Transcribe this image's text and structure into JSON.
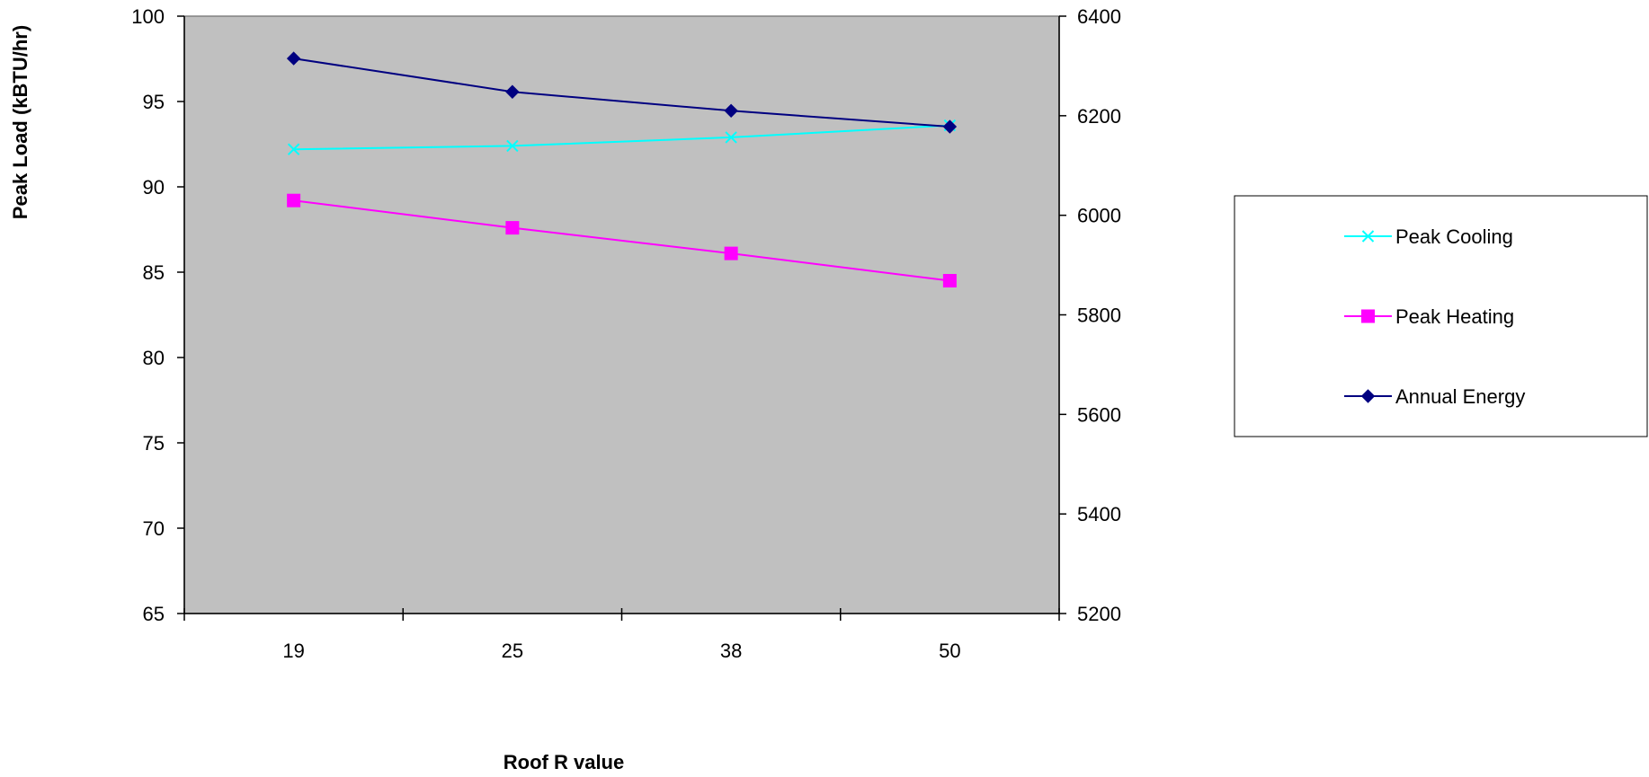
{
  "chart_data": {
    "type": "line",
    "title": "",
    "categories": [
      "19",
      "25",
      "38",
      "50"
    ],
    "xlabel": "Roof R value",
    "ylabel": "Peak Load (kBTU/hr)",
    "y2label": "",
    "ylim": [
      65,
      100
    ],
    "y_ticks": [
      65,
      70,
      75,
      80,
      85,
      90,
      95,
      100
    ],
    "y2lim": [
      5200,
      6400
    ],
    "y2_ticks": [
      5200,
      5400,
      5600,
      5800,
      6000,
      6200,
      6400
    ],
    "grid": false,
    "plot_background": "#C0C0C0",
    "legend_position": "right",
    "series": [
      {
        "name": "Peak Cooling",
        "axis": "left",
        "color": "#00FFFF",
        "marker": "x",
        "values": [
          92.2,
          92.4,
          92.9,
          93.6
        ]
      },
      {
        "name": "Peak Heating",
        "axis": "left",
        "color": "#FF00FF",
        "marker": "square",
        "values": [
          89.2,
          87.6,
          86.1,
          84.5
        ]
      },
      {
        "name": "Annual Energy",
        "axis": "right",
        "color": "#000080",
        "marker": "diamond",
        "values": [
          6315,
          6248,
          6210,
          6178
        ]
      }
    ]
  }
}
